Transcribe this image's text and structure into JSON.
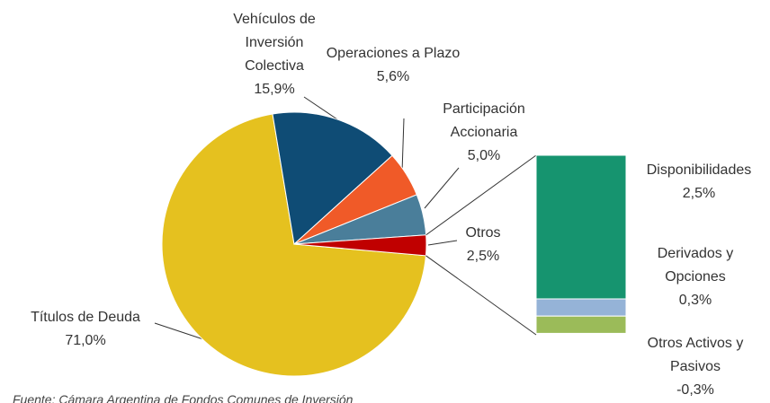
{
  "chart_data": [
    {
      "type": "pie",
      "categories": [
        "Títulos de Deuda",
        "Vehículos de Inversión Colectiva",
        "Operaciones a Plazo",
        "Participación Accionaria",
        "Otros"
      ],
      "values": [
        71.0,
        15.9,
        5.6,
        5.0,
        2.5
      ],
      "value_labels": [
        "71,0%",
        "15,9%",
        "5,6%",
        "5,0%",
        "2,5%"
      ],
      "colors": [
        "#e5c11f",
        "#0f4c75",
        "#f05a28",
        "#4a7e9a",
        "#c00000"
      ]
    },
    {
      "type": "bar",
      "categories": [
        "Disponibilidades",
        "Derivados y Opciones",
        "Otros Activos y Pasivos"
      ],
      "values": [
        2.5,
        0.3,
        -0.3
      ],
      "value_labels": [
        "2,5%",
        "0,3%",
        "-0,3%"
      ],
      "colors": [
        "#16946f",
        "#95b3d7",
        "#9bbb59"
      ]
    }
  ],
  "source": "Fuente: Cámara Argentina de Fondos Comunes de Inversión"
}
